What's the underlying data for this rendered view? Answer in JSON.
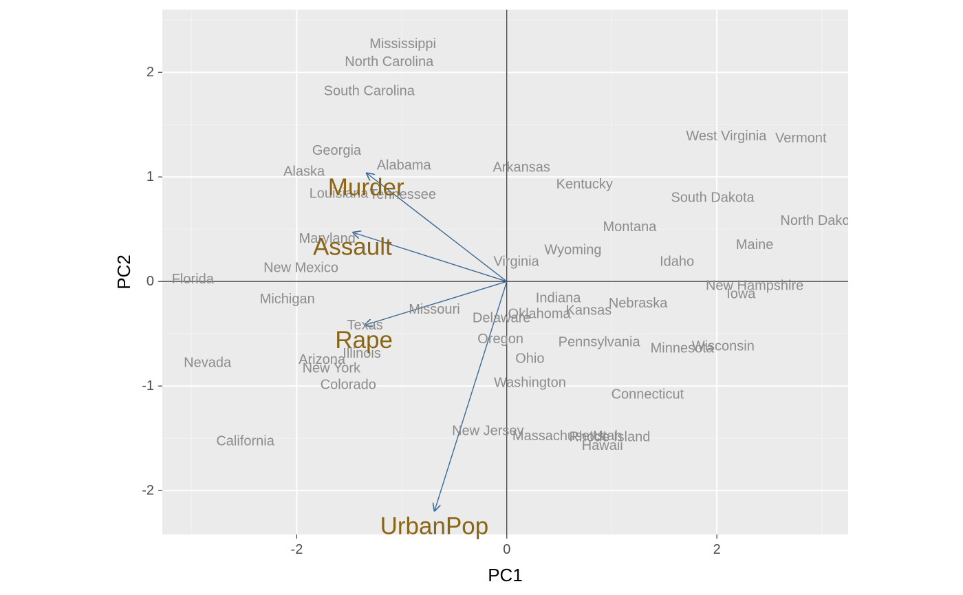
{
  "chart_data": {
    "type": "scatter",
    "subtype": "biplot",
    "title": "",
    "xlabel": "PC1",
    "ylabel": "PC2",
    "xlim": [
      -3.28,
      3.25
    ],
    "ylim": [
      -2.42,
      2.6
    ],
    "x_ticks": [
      -2,
      0,
      2
    ],
    "y_ticks": [
      -2,
      -1,
      0,
      1,
      2
    ],
    "x_tick_labels": [
      "-2",
      "0",
      "2"
    ],
    "y_tick_labels": [
      "-2",
      "-1",
      "0",
      "1",
      "2"
    ],
    "grid": true,
    "legend": "none",
    "colors": {
      "panel": "#ebebeb",
      "grid_major": "#ffffff",
      "grid_minor": "#f4f4f4",
      "zero_lines": "#000000",
      "point_labels": "#8c8c8c",
      "arrows": "#3b6a96",
      "variable_labels": "#8b6516",
      "tick_text": "#4d4d4d"
    },
    "points": [
      {
        "label": "Mississippi",
        "x": -0.99,
        "y": 2.27
      },
      {
        "label": "North Carolina",
        "x": -1.12,
        "y": 2.1
      },
      {
        "label": "South Carolina",
        "x": -1.31,
        "y": 1.82
      },
      {
        "label": "Georgia",
        "x": -1.62,
        "y": 1.25
      },
      {
        "label": "Alabama",
        "x": -0.98,
        "y": 1.11
      },
      {
        "label": "Alaska",
        "x": -1.93,
        "y": 1.05
      },
      {
        "label": "Louisiana",
        "x": -1.6,
        "y": 0.84
      },
      {
        "label": "Tennessee",
        "x": -0.99,
        "y": 0.83
      },
      {
        "label": "Arkansas",
        "x": 0.14,
        "y": 1.09
      },
      {
        "label": "Kentucky",
        "x": 0.74,
        "y": 0.93
      },
      {
        "label": "West Virginia",
        "x": 2.09,
        "y": 1.39
      },
      {
        "label": "Vermont",
        "x": 2.8,
        "y": 1.37
      },
      {
        "label": "South Dakota",
        "x": 1.96,
        "y": 0.8
      },
      {
        "label": "North Dakota",
        "x": 2.99,
        "y": 0.58
      },
      {
        "label": "Montana",
        "x": 1.17,
        "y": 0.52
      },
      {
        "label": "Maine",
        "x": 2.36,
        "y": 0.35
      },
      {
        "label": "Maryland",
        "x": -1.71,
        "y": 0.41
      },
      {
        "label": "Wyoming",
        "x": 0.63,
        "y": 0.3
      },
      {
        "label": "Idaho",
        "x": 1.62,
        "y": 0.19
      },
      {
        "label": "Virginia",
        "x": 0.09,
        "y": 0.19
      },
      {
        "label": "New Mexico",
        "x": -1.96,
        "y": 0.13
      },
      {
        "label": "Florida",
        "x": -2.99,
        "y": 0.02
      },
      {
        "label": "New Hampshire",
        "x": 2.36,
        "y": -0.04
      },
      {
        "label": "Iowa",
        "x": 2.23,
        "y": -0.12
      },
      {
        "label": "Michigan",
        "x": -2.09,
        "y": -0.17
      },
      {
        "label": "Indiana",
        "x": 0.49,
        "y": -0.16
      },
      {
        "label": "Nebraska",
        "x": 1.25,
        "y": -0.21
      },
      {
        "label": "Missouri",
        "x": -0.69,
        "y": -0.27
      },
      {
        "label": "Oklahoma",
        "x": 0.31,
        "y": -0.31
      },
      {
        "label": "Kansas",
        "x": 0.78,
        "y": -0.28
      },
      {
        "label": "Delaware",
        "x": -0.05,
        "y": -0.35
      },
      {
        "label": "Texas",
        "x": -1.35,
        "y": -0.42
      },
      {
        "label": "Oregon",
        "x": -0.06,
        "y": -0.55
      },
      {
        "label": "Pennsylvania",
        "x": 0.88,
        "y": -0.58
      },
      {
        "label": "Minnesota",
        "x": 1.67,
        "y": -0.64
      },
      {
        "label": "Wisconsin",
        "x": 2.06,
        "y": -0.62
      },
      {
        "label": "Illinois",
        "x": -1.38,
        "y": -0.69
      },
      {
        "label": "Ohio",
        "x": 0.22,
        "y": -0.74
      },
      {
        "label": "Arizona",
        "x": -1.76,
        "y": -0.75
      },
      {
        "label": "Nevada",
        "x": -2.85,
        "y": -0.78
      },
      {
        "label": "New York",
        "x": -1.67,
        "y": -0.83
      },
      {
        "label": "Colorado",
        "x": -1.51,
        "y": -0.99
      },
      {
        "label": "Washington",
        "x": 0.22,
        "y": -0.97
      },
      {
        "label": "Connecticut",
        "x": 1.34,
        "y": -1.08
      },
      {
        "label": "New Jersey",
        "x": -0.18,
        "y": -1.43
      },
      {
        "label": "Massachusetts",
        "x": 0.49,
        "y": -1.48
      },
      {
        "label": "Utah",
        "x": 0.96,
        "y": -1.48
      },
      {
        "label": "Rhode Island",
        "x": 0.98,
        "y": -1.49
      },
      {
        "label": "Hawaii",
        "x": 0.91,
        "y": -1.57
      },
      {
        "label": "California",
        "x": -2.49,
        "y": -1.53
      }
    ],
    "loadings": [
      {
        "label": "Murder",
        "x": -1.34,
        "y": 1.04
      },
      {
        "label": "Assault",
        "x": -1.47,
        "y": 0.47
      },
      {
        "label": "Rape",
        "x": -1.36,
        "y": -0.42
      },
      {
        "label": "UrbanPop",
        "x": -0.69,
        "y": -2.2
      }
    ],
    "loading_labels": [
      {
        "label": "Murder",
        "x": -1.34,
        "y": 0.9
      },
      {
        "label": "Assault",
        "x": -1.47,
        "y": 0.33
      },
      {
        "label": "Rape",
        "x": -1.36,
        "y": -0.56
      },
      {
        "label": "UrbanPop",
        "x": -0.69,
        "y": -2.34
      }
    ]
  }
}
